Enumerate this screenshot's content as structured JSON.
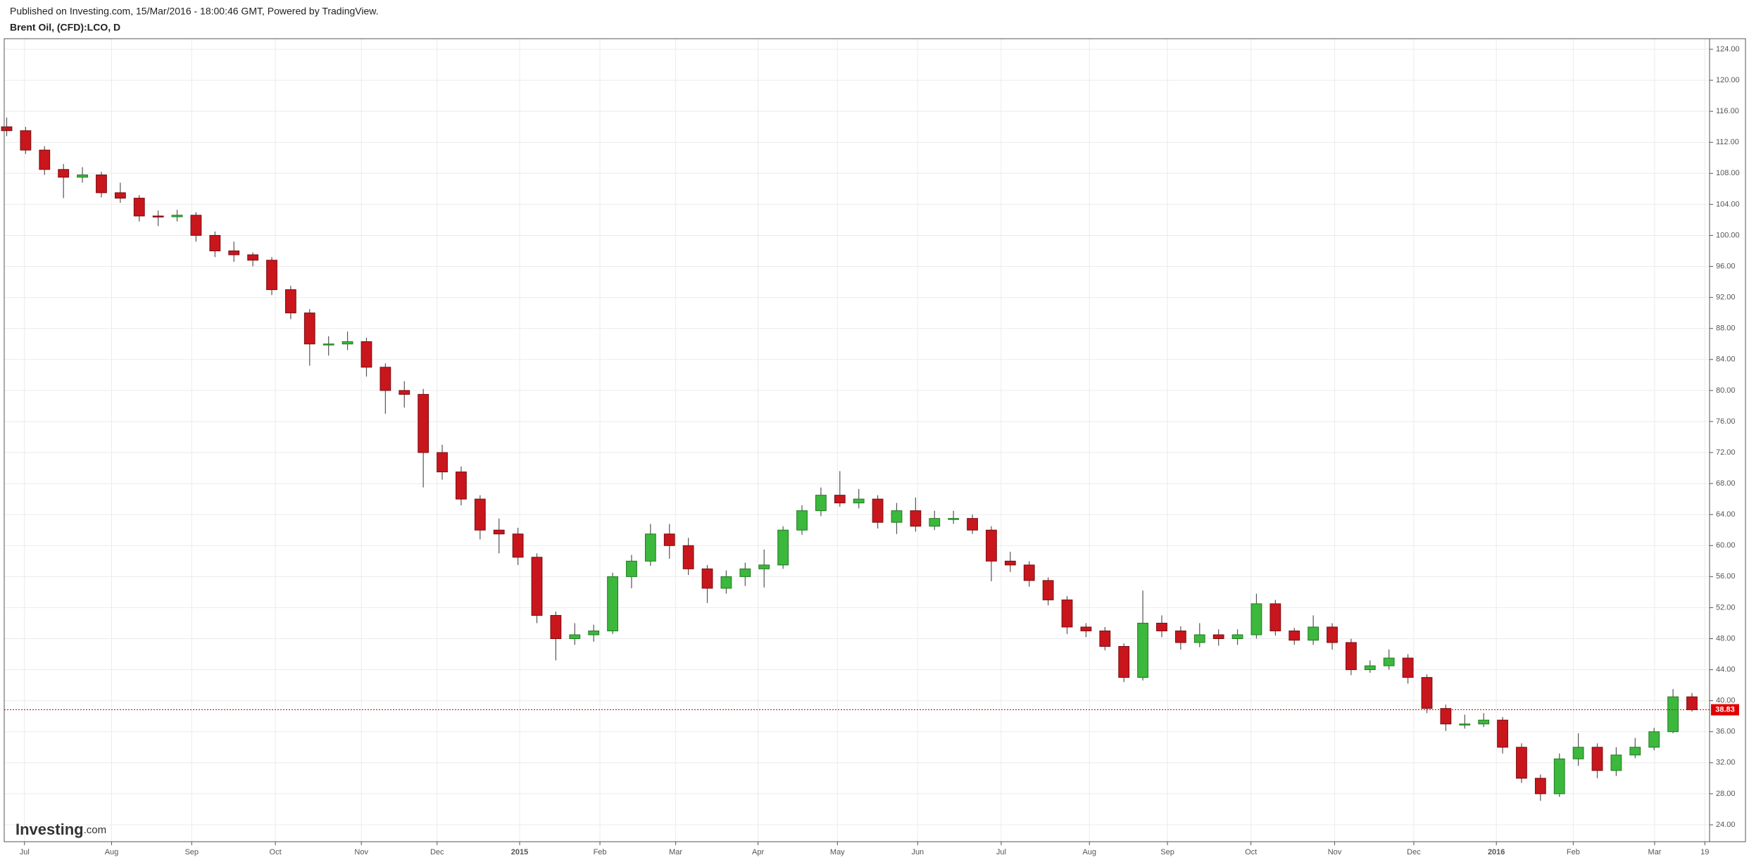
{
  "chart_data": {
    "type": "candlestick",
    "published": "Published on Investing.com, 15/Mar/2016 - 18:00:46 GMT, Powered by TradingView.",
    "title": "Brent Oil, (CFD):LCO, D",
    "logo_text": "Investing",
    "logo_suffix": ".com",
    "up_color": "#3cb83c",
    "down_color": "#c8161c",
    "grid": true,
    "open": [
      114,
      113.5,
      111,
      108.5,
      107.5,
      107.8,
      105.5,
      104.8,
      102.5,
      102.4,
      102.6,
      100,
      98,
      97.5,
      96.8,
      93,
      90,
      86,
      86,
      86.3,
      83,
      80,
      79.5,
      72,
      69.5,
      66,
      62,
      61.5,
      58.5,
      51,
      48,
      48.5,
      49,
      56,
      58,
      61.5,
      60,
      57,
      54.5,
      56,
      57,
      57.5,
      62,
      64.5,
      66.5,
      65.5,
      66,
      63,
      64.5,
      62.5,
      63.5,
      63.5,
      62,
      58,
      57.5,
      55.5,
      53,
      49.5,
      49,
      47,
      43,
      50,
      49,
      47.5,
      48.5,
      48,
      48.5,
      52.5,
      49,
      47.8,
      49.5,
      47.5,
      44,
      44.5,
      45.5,
      43,
      39,
      37,
      37,
      37.5,
      34,
      30,
      28,
      32.5,
      34,
      31,
      33,
      34,
      36,
      40.5
    ],
    "high": [
      115.2,
      114,
      111.5,
      109.2,
      108.8,
      108.2,
      106.8,
      105.2,
      103.2,
      103.3,
      103,
      100.5,
      99.2,
      97.8,
      97.2,
      93.5,
      90.5,
      87,
      87.6,
      86.8,
      83.5,
      81.2,
      80.2,
      73,
      70.2,
      66.5,
      63.5,
      62.3,
      59,
      51.5,
      50,
      49.8,
      56.5,
      58.8,
      62.8,
      62.8,
      61,
      57.5,
      56.8,
      57.8,
      59.5,
      62.5,
      65.2,
      67.5,
      69.6,
      67.3,
      66.5,
      65.5,
      66.2,
      64.5,
      64.5,
      64,
      62.5,
      59.2,
      58,
      55.9,
      53.5,
      50,
      49.5,
      47.4,
      54.2,
      51,
      49.6,
      50,
      49.2,
      49.2,
      53.8,
      53,
      49.4,
      51,
      50,
      48,
      45.2,
      46.6,
      46,
      43.4,
      39.5,
      38.2,
      38.4,
      37.9,
      34.5,
      30.5,
      33.2,
      35.8,
      34.5,
      34,
      35.2,
      36.5,
      41.5,
      41
    ],
    "low": [
      112.8,
      110.5,
      107.8,
      104.8,
      106.8,
      104.9,
      104.2,
      101.8,
      101.2,
      101.8,
      99.2,
      97.2,
      96.6,
      96,
      92.3,
      89.2,
      83.2,
      84.5,
      85.2,
      81.8,
      77,
      77.8,
      67.5,
      68.5,
      65.2,
      60.8,
      59,
      57.5,
      50,
      45.2,
      47.2,
      47.6,
      48.6,
      54.5,
      57.4,
      58.3,
      56.2,
      52.6,
      53.8,
      54.8,
      54.6,
      57,
      61.4,
      63.8,
      65,
      64.8,
      62.2,
      61.5,
      61.8,
      62,
      62.8,
      61.5,
      55.4,
      56.6,
      54.7,
      52.3,
      48.6,
      48.2,
      46.5,
      42.4,
      42.6,
      48.2,
      46.6,
      46.9,
      47.1,
      47.2,
      48,
      48.4,
      47.2,
      47.2,
      46.6,
      43.3,
      43.6,
      44,
      42.2,
      38.4,
      36.1,
      36.4,
      36.6,
      33.2,
      29.4,
      27.1,
      27.6,
      31.6,
      30,
      30.3,
      32.6,
      33.6,
      35.8,
      38.6
    ],
    "close": [
      113.5,
      111,
      108.5,
      107.5,
      107.8,
      105.5,
      104.8,
      102.5,
      102.4,
      102.6,
      100,
      98,
      97.5,
      96.8,
      93,
      90,
      86,
      86,
      86.3,
      83,
      80,
      79.5,
      72,
      69.5,
      66,
      62,
      61.5,
      58.5,
      51,
      48,
      48.5,
      49,
      56,
      58,
      61.5,
      60,
      57,
      54.5,
      56,
      57,
      57.5,
      62,
      64.5,
      66.5,
      65.5,
      66,
      63,
      64.5,
      62.5,
      63.5,
      63.5,
      62,
      58,
      57.5,
      55.5,
      53,
      49.5,
      49,
      47,
      43,
      50,
      49,
      47.5,
      48.5,
      48,
      48.5,
      52.5,
      49,
      47.8,
      49.5,
      47.5,
      44,
      44.5,
      45.5,
      43,
      39,
      37,
      37,
      37.5,
      34,
      30,
      28,
      32.5,
      34,
      31,
      33,
      34,
      36,
      40.5,
      38.83
    ],
    "last_price": {
      "value": 38.83,
      "label": "38.83"
    },
    "last_price_color": "#e00000",
    "xlim": [
      -0.13,
      89.93
    ],
    "xticks": [
      {
        "value": 0.94,
        "label": "Jul"
      },
      {
        "value": 5.54,
        "label": "Aug"
      },
      {
        "value": 9.77,
        "label": "Sep"
      },
      {
        "value": 14.19,
        "label": "Oct"
      },
      {
        "value": 18.73,
        "label": "Nov"
      },
      {
        "value": 22.73,
        "label": "Dec"
      },
      {
        "value": 27.09,
        "label": "2015"
      },
      {
        "value": 31.33,
        "label": "Feb"
      },
      {
        "value": 35.33,
        "label": "Mar"
      },
      {
        "value": 39.68,
        "label": "Apr"
      },
      {
        "value": 43.87,
        "label": "May"
      },
      {
        "value": 48.11,
        "label": "Jun"
      },
      {
        "value": 52.52,
        "label": "Jul"
      },
      {
        "value": 57.18,
        "label": "Aug"
      },
      {
        "value": 61.3,
        "label": "Sep"
      },
      {
        "value": 65.71,
        "label": "Oct"
      },
      {
        "value": 70.13,
        "label": "Nov"
      },
      {
        "value": 74.31,
        "label": "Dec"
      },
      {
        "value": 78.67,
        "label": "2016"
      },
      {
        "value": 82.73,
        "label": "Feb"
      },
      {
        "value": 87.03,
        "label": "Mar"
      },
      {
        "value": 89.68,
        "label": "19"
      }
    ],
    "ylim": [
      21.82,
      125.36
    ],
    "yticks": [
      {
        "value": 24,
        "label": "24.00"
      },
      {
        "value": 28,
        "label": "28.00"
      },
      {
        "value": 32,
        "label": "32.00"
      },
      {
        "value": 36,
        "label": "36.00"
      },
      {
        "value": 40,
        "label": "40.00"
      },
      {
        "value": 44,
        "label": "44.00"
      },
      {
        "value": 48,
        "label": "48.00"
      },
      {
        "value": 52,
        "label": "52.00"
      },
      {
        "value": 56,
        "label": "56.00"
      },
      {
        "value": 60,
        "label": "60.00"
      },
      {
        "value": 64,
        "label": "64.00"
      },
      {
        "value": 68,
        "label": "68.00"
      },
      {
        "value": 72,
        "label": "72.00"
      },
      {
        "value": 76,
        "label": "76.00"
      },
      {
        "value": 80,
        "label": "80.00"
      },
      {
        "value": 84,
        "label": "84.00"
      },
      {
        "value": 88,
        "label": "88.00"
      },
      {
        "value": 92,
        "label": "92.00"
      },
      {
        "value": 96,
        "label": "96.00"
      },
      {
        "value": 100,
        "label": "100.00"
      },
      {
        "value": 104,
        "label": "104.00"
      },
      {
        "value": 108,
        "label": "108.00"
      },
      {
        "value": 112,
        "label": "112.00"
      },
      {
        "value": 116,
        "label": "116.00"
      },
      {
        "value": 120,
        "label": "120.00"
      },
      {
        "value": 124,
        "label": "124.00"
      }
    ]
  }
}
